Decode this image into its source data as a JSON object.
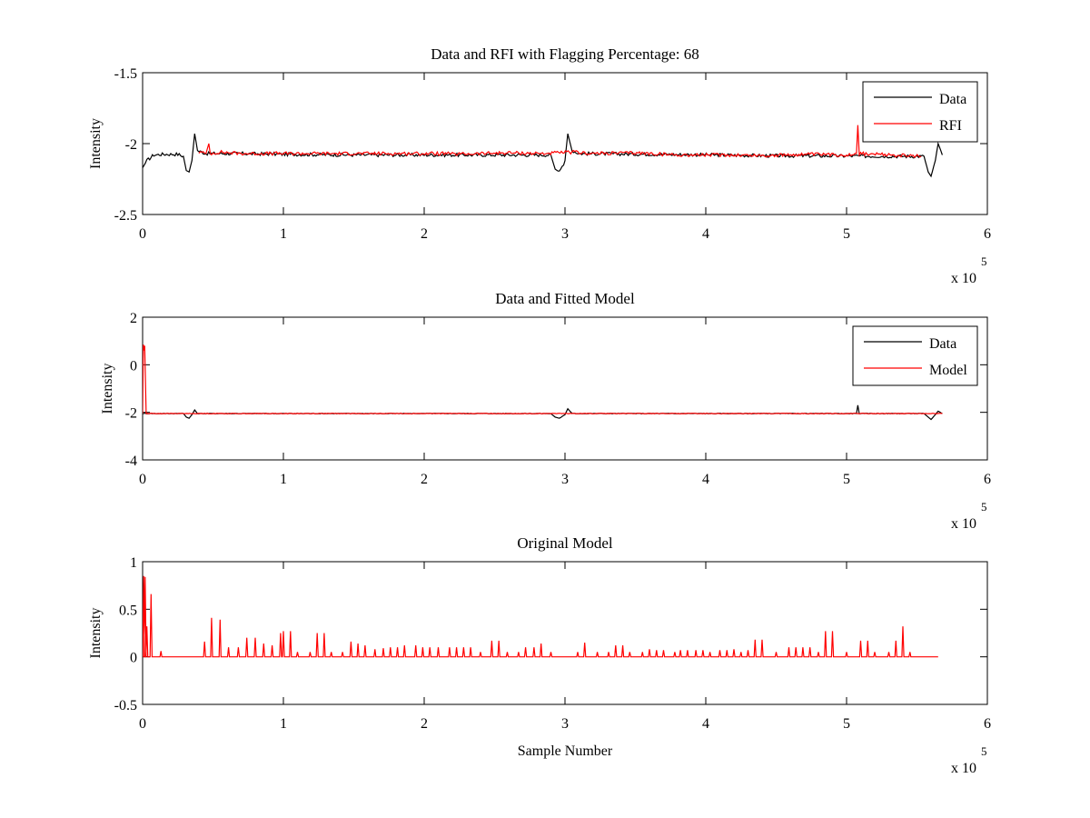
{
  "chart_data": [
    {
      "type": "line",
      "title": "Data and RFI with Flagging Percentage: 68",
      "xlabel": "",
      "ylabel": "Intensity",
      "xlim": [
        0,
        600000
      ],
      "ylim": [
        -2.5,
        -1.5
      ],
      "xticks": [
        "0",
        "1",
        "2",
        "3",
        "4",
        "5",
        "6"
      ],
      "yticks": [
        "-1.5",
        "-2",
        "-2.5"
      ],
      "x_exponent_base": "x 10",
      "x_exponent_power": "5",
      "grid": false,
      "legend_position": "top-right",
      "series": [
        {
          "name": "Data",
          "color": "#000000",
          "points": [
            [
              0,
              -2.17
            ],
            [
              3000,
              -2.12
            ],
            [
              8000,
              -2.08
            ],
            [
              15000,
              -2.075
            ],
            [
              25000,
              -2.075
            ],
            [
              29000,
              -2.09
            ],
            [
              31000,
              -2.19
            ],
            [
              33000,
              -2.2
            ],
            [
              35000,
              -2.12
            ],
            [
              37000,
              -1.93
            ],
            [
              39000,
              -2.05
            ],
            [
              45000,
              -2.07
            ],
            [
              70000,
              -2.07
            ],
            [
              100000,
              -2.075
            ],
            [
              150000,
              -2.08
            ],
            [
              200000,
              -2.08
            ],
            [
              290000,
              -2.08
            ],
            [
              293000,
              -2.18
            ],
            [
              296000,
              -2.2
            ],
            [
              300000,
              -2.12
            ],
            [
              302000,
              -1.93
            ],
            [
              305000,
              -2.05
            ],
            [
              310000,
              -2.07
            ],
            [
              410000,
              -2.08
            ],
            [
              440000,
              -2.085
            ],
            [
              555000,
              -2.09
            ],
            [
              558000,
              -2.2
            ],
            [
              560000,
              -2.23
            ],
            [
              563000,
              -2.12
            ],
            [
              565000,
              -2.0
            ],
            [
              567000,
              -2.05
            ],
            [
              568000,
              -2.08
            ]
          ]
        },
        {
          "name": "RFI",
          "color": "#ff0000",
          "points": [
            [
              40000,
              -2.06
            ],
            [
              45000,
              -2.07
            ],
            [
              47000,
              -2.0
            ],
            [
              48000,
              -2.07
            ],
            [
              55000,
              -2.06
            ],
            [
              70000,
              -2.07
            ],
            [
              218000,
              -2.07
            ],
            [
              220000,
              -2.075
            ],
            [
              240000,
              -2.07
            ],
            [
              260000,
              -2.065
            ],
            [
              285000,
              -2.07
            ],
            [
              306000,
              -2.06
            ],
            [
              320000,
              -2.07
            ],
            [
              350000,
              -2.065
            ],
            [
              380000,
              -2.08
            ],
            [
              420000,
              -2.08
            ],
            [
              445000,
              -2.085
            ],
            [
              470000,
              -2.075
            ],
            [
              500000,
              -2.08
            ],
            [
              507000,
              -2.07
            ],
            [
              508000,
              -1.87
            ],
            [
              509000,
              -2.07
            ],
            [
              530000,
              -2.08
            ],
            [
              553000,
              -2.09
            ]
          ]
        }
      ]
    },
    {
      "type": "line",
      "title": "Data and Fitted Model",
      "xlabel": "",
      "ylabel": "Intensity",
      "xlim": [
        0,
        600000
      ],
      "ylim": [
        -4,
        2
      ],
      "xticks": [
        "0",
        "1",
        "2",
        "3",
        "4",
        "5",
        "6"
      ],
      "yticks": [
        "2",
        "0",
        "-2",
        "-4"
      ],
      "x_exponent_base": "x 10",
      "x_exponent_power": "5",
      "grid": false,
      "legend_position": "top-right",
      "series": [
        {
          "name": "Data",
          "color": "#000000",
          "points": [
            [
              0,
              -2.05
            ],
            [
              29000,
              -2.05
            ],
            [
              31000,
              -2.2
            ],
            [
              33000,
              -2.25
            ],
            [
              35000,
              -2.1
            ],
            [
              37000,
              -1.9
            ],
            [
              39000,
              -2.05
            ],
            [
              290000,
              -2.05
            ],
            [
              293000,
              -2.2
            ],
            [
              296000,
              -2.25
            ],
            [
              300000,
              -2.1
            ],
            [
              302000,
              -1.85
            ],
            [
              305000,
              -2.05
            ],
            [
              507000,
              -2.05
            ],
            [
              508000,
              -1.7
            ],
            [
              509000,
              -2.05
            ],
            [
              555000,
              -2.05
            ],
            [
              558000,
              -2.2
            ],
            [
              560000,
              -2.3
            ],
            [
              563000,
              -2.1
            ],
            [
              565000,
              -1.95
            ],
            [
              568000,
              -2.05
            ]
          ]
        },
        {
          "name": "Model",
          "color": "#ff0000",
          "points": [
            [
              0,
              -2.05
            ],
            [
              500,
              0.85
            ],
            [
              1000,
              0.6
            ],
            [
              1500,
              0.8
            ],
            [
              2500,
              -2.05
            ],
            [
              568000,
              -2.05
            ]
          ]
        }
      ]
    },
    {
      "type": "line",
      "title": "Original Model",
      "xlabel": "Sample Number",
      "ylabel": "Intensity",
      "xlim": [
        0,
        600000
      ],
      "ylim": [
        -0.5,
        1
      ],
      "xticks": [
        "0",
        "1",
        "2",
        "3",
        "4",
        "5",
        "6"
      ],
      "yticks": [
        "1",
        "0.5",
        "0",
        "-0.5"
      ],
      "x_exponent_base": "x 10",
      "x_exponent_power": "5",
      "grid": false,
      "legend_position": "none",
      "series": [
        {
          "color": "#ff0000",
          "baseline": 0,
          "end_x": 565000,
          "spikes": [
            [
              800,
              0.85
            ],
            [
              1800,
              0.84
            ],
            [
              3000,
              0.32
            ],
            [
              6000,
              0.66
            ],
            [
              13000,
              0.06
            ],
            [
              44000,
              0.16
            ],
            [
              49000,
              0.41
            ],
            [
              55000,
              0.39
            ],
            [
              61000,
              0.1
            ],
            [
              68000,
              0.1
            ],
            [
              74000,
              0.2
            ],
            [
              80000,
              0.2
            ],
            [
              86000,
              0.14
            ],
            [
              92000,
              0.12
            ],
            [
              98000,
              0.25
            ],
            [
              100000,
              0.27
            ],
            [
              105000,
              0.27
            ],
            [
              110000,
              0.05
            ],
            [
              119000,
              0.05
            ],
            [
              124000,
              0.25
            ],
            [
              129000,
              0.25
            ],
            [
              134000,
              0.05
            ],
            [
              142000,
              0.05
            ],
            [
              148000,
              0.16
            ],
            [
              153000,
              0.14
            ],
            [
              158000,
              0.12
            ],
            [
              165000,
              0.08
            ],
            [
              171000,
              0.09
            ],
            [
              176000,
              0.1
            ],
            [
              181000,
              0.1
            ],
            [
              186000,
              0.12
            ],
            [
              194000,
              0.12
            ],
            [
              199000,
              0.1
            ],
            [
              204000,
              0.1
            ],
            [
              210000,
              0.1
            ],
            [
              218000,
              0.1
            ],
            [
              223000,
              0.1
            ],
            [
              228000,
              0.1
            ],
            [
              233000,
              0.1
            ],
            [
              240000,
              0.05
            ],
            [
              248000,
              0.17
            ],
            [
              253000,
              0.17
            ],
            [
              259000,
              0.05
            ],
            [
              267000,
              0.05
            ],
            [
              272000,
              0.1
            ],
            [
              278000,
              0.1
            ],
            [
              283000,
              0.14
            ],
            [
              290000,
              0.05
            ],
            [
              309000,
              0.05
            ],
            [
              314000,
              0.15
            ],
            [
              323000,
              0.05
            ],
            [
              331000,
              0.05
            ],
            [
              336000,
              0.12
            ],
            [
              341000,
              0.12
            ],
            [
              346000,
              0.05
            ],
            [
              355000,
              0.05
            ],
            [
              360000,
              0.08
            ],
            [
              365000,
              0.07
            ],
            [
              370000,
              0.07
            ],
            [
              378000,
              0.05
            ],
            [
              382000,
              0.07
            ],
            [
              387000,
              0.07
            ],
            [
              393000,
              0.07
            ],
            [
              398000,
              0.07
            ],
            [
              403000,
              0.05
            ],
            [
              410000,
              0.07
            ],
            [
              415000,
              0.07
            ],
            [
              420000,
              0.08
            ],
            [
              425000,
              0.05
            ],
            [
              430000,
              0.07
            ],
            [
              435000,
              0.18
            ],
            [
              440000,
              0.18
            ],
            [
              450000,
              0.05
            ],
            [
              459000,
              0.1
            ],
            [
              464000,
              0.1
            ],
            [
              469000,
              0.1
            ],
            [
              474000,
              0.1
            ],
            [
              480000,
              0.05
            ],
            [
              485000,
              0.27
            ],
            [
              490000,
              0.27
            ],
            [
              500000,
              0.05
            ],
            [
              510000,
              0.17
            ],
            [
              515000,
              0.17
            ],
            [
              520000,
              0.05
            ],
            [
              530000,
              0.05
            ],
            [
              535000,
              0.17
            ],
            [
              540000,
              0.32
            ],
            [
              545000,
              0.05
            ]
          ]
        }
      ]
    }
  ]
}
